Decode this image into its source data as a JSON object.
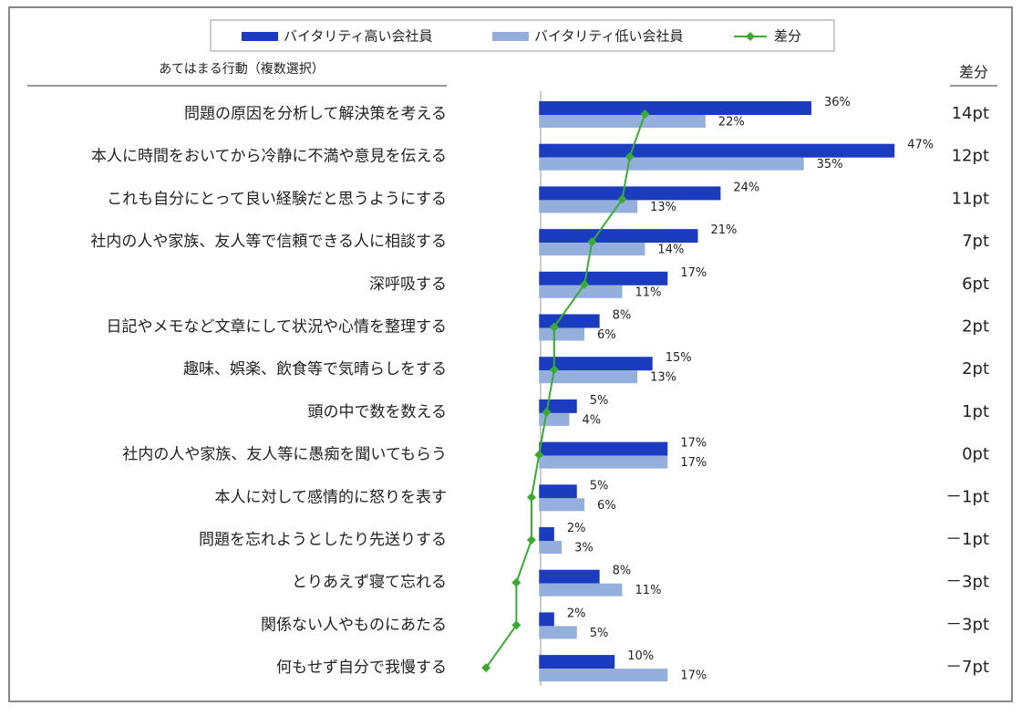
{
  "chart_data": {
    "type": "bar",
    "orientation": "horizontal",
    "column_header": "あてはまる行動（複数選択）",
    "diff_header": "差分",
    "categories": [
      "問題の原因を分析して解決策を考える",
      "本人に時間をおいてから冷静に不満や意見を伝える",
      "これも自分にとって良い経験だと思うようにする",
      "社内の人や家族、友人等で信頼できる人に相談する",
      "深呼吸する",
      "日記やメモなど文章にして状況や心情を整理する",
      "趣味、娯楽、飲食等で気晴らしをする",
      "頭の中で数を数える",
      "社内の人や家族、友人等に愚痴を聞いてもらう",
      "本人に対して感情的に怒りを表す",
      "問題を忘れようとしたり先送りする",
      "とりあえず寝て忘れる",
      "関係ない人やものにあたる",
      "何もせず自分で我慢する"
    ],
    "series": [
      {
        "name": "バイタリティ高い会社員",
        "color": "#1c3cc0",
        "type": "bar",
        "values": [
          36,
          47,
          24,
          21,
          17,
          8,
          15,
          5,
          17,
          5,
          2,
          8,
          2,
          10
        ],
        "value_labels": [
          "36%",
          "47%",
          "24%",
          "21%",
          "17%",
          "8%",
          "15%",
          "5%",
          "17%",
          "5%",
          "2%",
          "8%",
          "2%",
          "10%"
        ]
      },
      {
        "name": "バイタリティ低い会社員",
        "color": "#94afdb",
        "type": "bar",
        "values": [
          22,
          35,
          13,
          14,
          11,
          6,
          13,
          4,
          17,
          6,
          3,
          11,
          5,
          17
        ],
        "value_labels": [
          "22%",
          "35%",
          "13%",
          "14%",
          "11%",
          "6%",
          "13%",
          "4%",
          "17%",
          "6%",
          "3%",
          "11%",
          "5%",
          "17%"
        ]
      },
      {
        "name": "差分",
        "color": "#3aaa35",
        "type": "line",
        "values": [
          14,
          12,
          11,
          7,
          6,
          2,
          2,
          1,
          0,
          -1,
          -1,
          -3,
          -3,
          -7
        ],
        "value_labels": [
          "14pt",
          "12pt",
          "11pt",
          "7pt",
          "6pt",
          "2pt",
          "2pt",
          "1pt",
          "0pt",
          "－1pt",
          "－1pt",
          "－3pt",
          "－3pt",
          "－7pt"
        ]
      }
    ],
    "xlim": [
      -11,
      53
    ],
    "legend": "top"
  }
}
